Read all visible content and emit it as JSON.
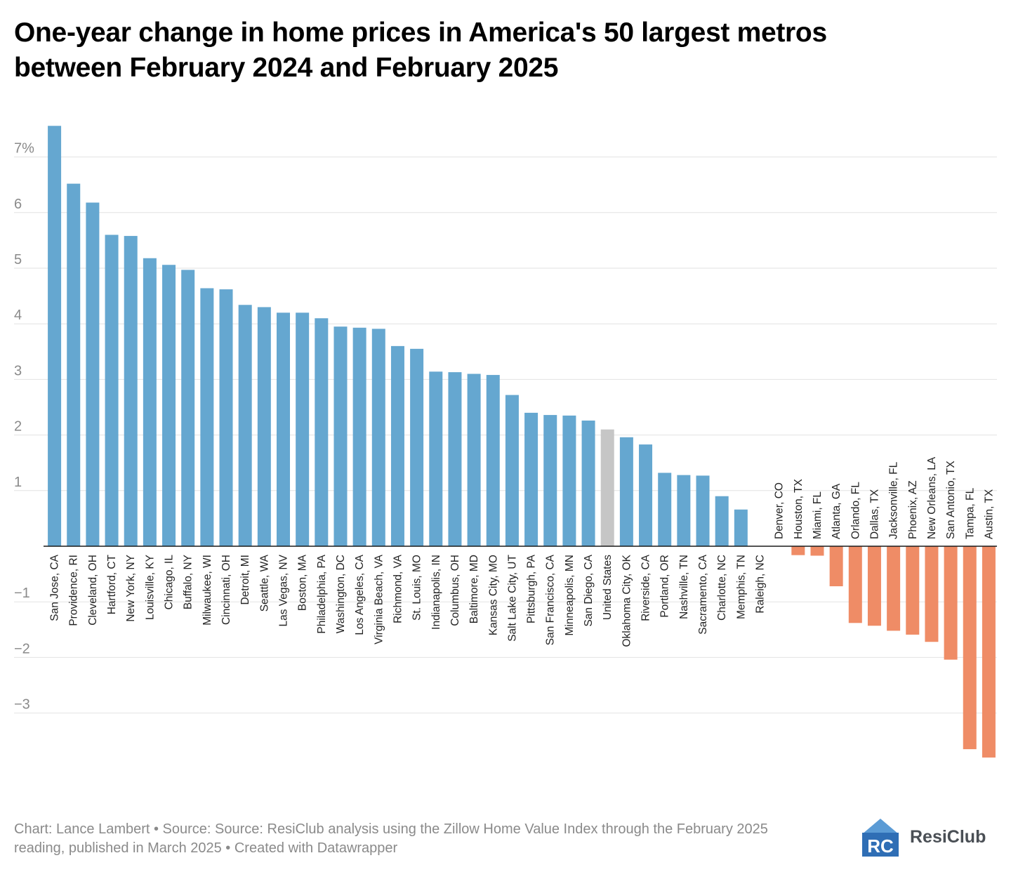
{
  "title_line1": "One-year change in home prices in America's 50 largest metros",
  "title_line2": "between February 2024 and February 2025",
  "footer_line1": "Chart: Lance Lambert • Source: Source: ResiClub analysis using the Zillow Home Value Index through the February 2025",
  "footer_line2": "reading, published in March 2025 • Created with Datawrapper",
  "brand": {
    "name": "ResiClub",
    "logo_letters": "RC"
  },
  "colors": {
    "positive": "#65a7d0",
    "negative": "#ef8c66",
    "national": "#c6c6c6",
    "grid": "#e2e2e2",
    "axis_label": "#8a8a8a"
  },
  "chart_data": {
    "type": "bar",
    "title": "One-year change in home prices in America's 50 largest metros between February 2024 and February 2025",
    "ylim": [
      -3.8,
      7.6
    ],
    "y_ticks": [
      {
        "value": 7,
        "label": "7%"
      },
      {
        "value": 6,
        "label": "6"
      },
      {
        "value": 5,
        "label": "5"
      },
      {
        "value": 4,
        "label": "4"
      },
      {
        "value": 3,
        "label": "3"
      },
      {
        "value": 2,
        "label": "2"
      },
      {
        "value": 1,
        "label": "1"
      },
      {
        "value": -1,
        "label": "−1"
      },
      {
        "value": -2,
        "label": "−2"
      },
      {
        "value": -3,
        "label": "−3"
      }
    ],
    "grid": true,
    "categories": [
      "San Jose, CA",
      "Providence, RI",
      "Cleveland, OH",
      "Hartford, CT",
      "New York, NY",
      "Louisville, KY",
      "Chicago, IL",
      "Buffalo, NY",
      "Milwaukee, WI",
      "Cincinnati, OH",
      "Detroit, MI",
      "Seattle, WA",
      "Las Vegas, NV",
      "Boston, MA",
      "Philadelphia, PA",
      "Washington, DC",
      "Los Angeles, CA",
      "Virginia Beach, VA",
      "Richmond, VA",
      "St. Louis, MO",
      "Indianapolis, IN",
      "Columbus, OH",
      "Baltimore, MD",
      "Kansas City, MO",
      "Salt Lake City, UT",
      "Pittsburgh, PA",
      "San Francisco, CA",
      "Minneapolis, MN",
      "San Diego, CA",
      "United States",
      "Oklahoma City, OK",
      "Riverside, CA",
      "Portland, OR",
      "Nashville, TN",
      "Sacramento, CA",
      "Charlotte, NC",
      "Memphis, TN",
      "Raleigh, NC",
      "Denver, CO",
      "Houston, TX",
      "Miami, FL",
      "Atlanta, GA",
      "Orlando, FL",
      "Dallas, TX",
      "Jacksonville, FL",
      "Phoenix, AZ",
      "New Orleans, LA",
      "San Antonio, TX",
      "Tampa, FL",
      "Austin, TX"
    ],
    "values": [
      7.56,
      6.52,
      6.18,
      5.6,
      5.58,
      5.18,
      5.06,
      4.97,
      4.64,
      4.62,
      4.34,
      4.3,
      4.2,
      4.2,
      4.1,
      3.95,
      3.93,
      3.91,
      3.6,
      3.55,
      3.14,
      3.13,
      3.1,
      3.08,
      2.72,
      2.4,
      2.36,
      2.35,
      2.26,
      2.1,
      1.96,
      1.83,
      1.32,
      1.28,
      1.27,
      0.9,
      0.66,
      0.0,
      0.0,
      -0.16,
      -0.17,
      -0.72,
      -1.38,
      -1.43,
      -1.52,
      -1.59,
      -1.72,
      -2.04,
      -3.65,
      -3.8
    ],
    "highlight": "United States"
  }
}
